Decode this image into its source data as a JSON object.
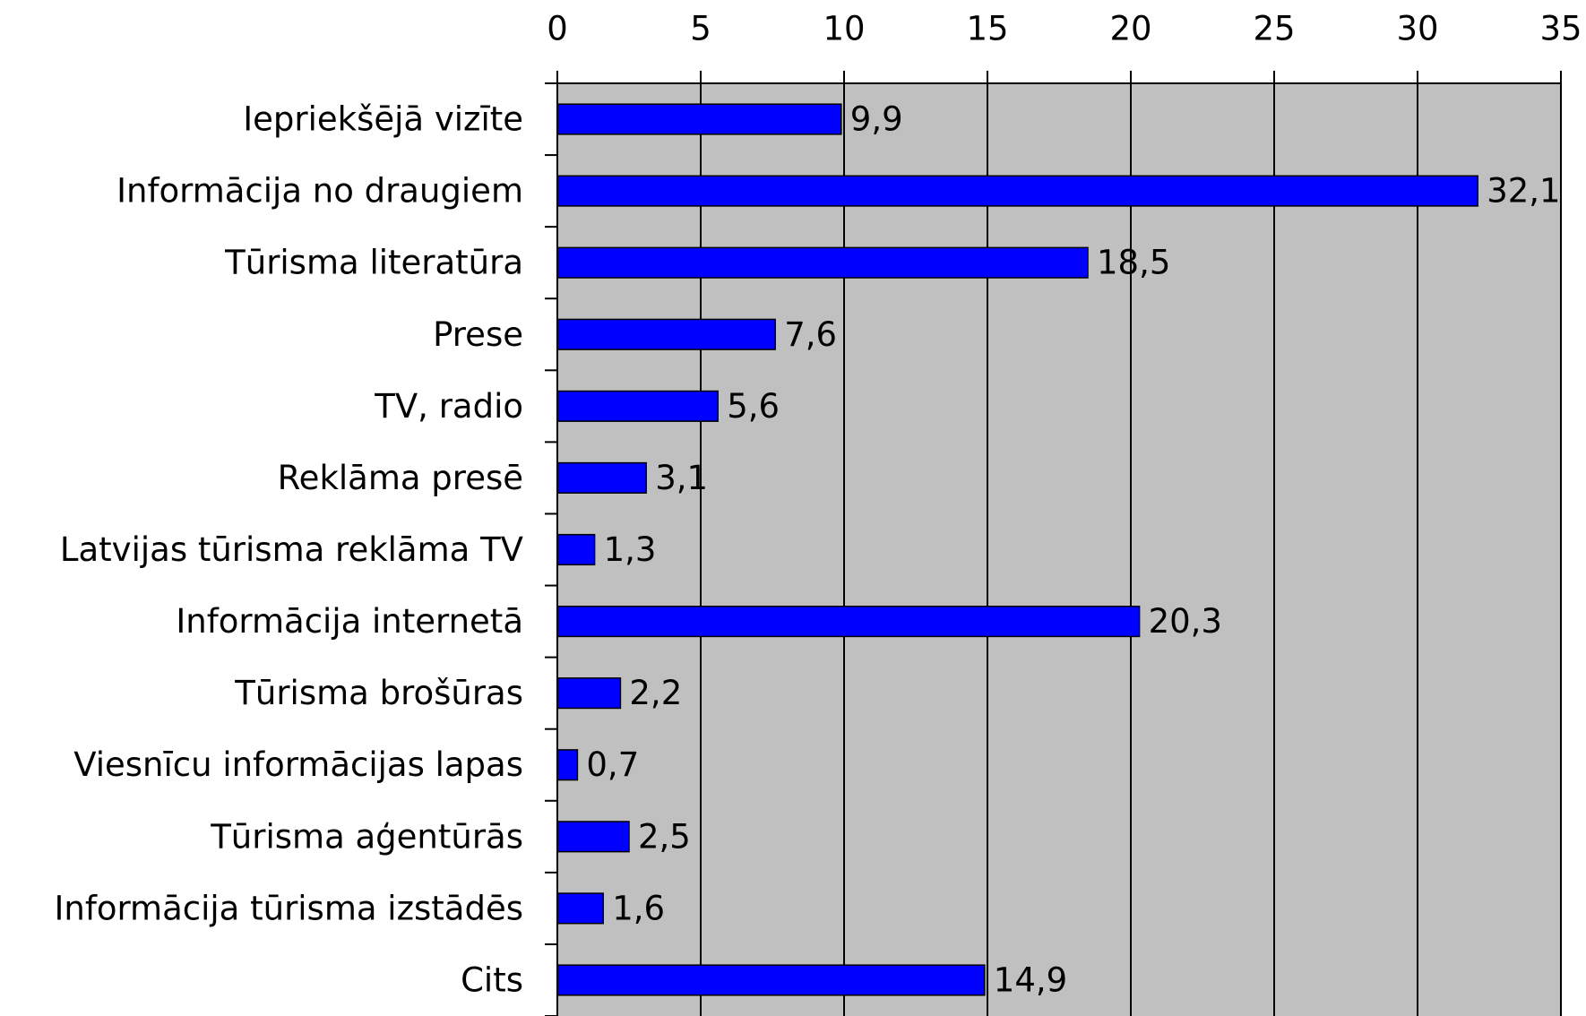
{
  "chart_data": {
    "type": "hbar",
    "categories": [
      "Iepriekšējā vizīte",
      "Informācija no draugiem",
      "Tūrisma literatūra",
      "Prese",
      "TV, radio",
      "Reklāma presē",
      "Latvijas tūrisma reklāma TV",
      "Informācija internetā",
      "Tūrisma brošūras",
      "Viesnīcu informācijas lapas",
      "Tūrisma aģentūrās",
      "Informācija tūrisma izstādēs",
      "Cits"
    ],
    "values": [
      9.9,
      32.1,
      18.5,
      7.6,
      5.6,
      3.1,
      1.3,
      20.3,
      2.2,
      0.7,
      2.5,
      1.6,
      14.9
    ],
    "value_labels": [
      "9,9",
      "32,1",
      "18,5",
      "7,6",
      "5,6",
      "3,1",
      "1,3",
      "20,3",
      "2,2",
      "0,7",
      "2,5",
      "1,6",
      "14,9"
    ],
    "color": "#0000ff",
    "xlim": [
      0,
      35
    ],
    "xticks": [
      0,
      5,
      10,
      15,
      20,
      25,
      30,
      35
    ],
    "grid": true,
    "background": "#c0c0c0"
  }
}
